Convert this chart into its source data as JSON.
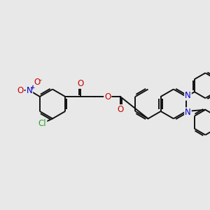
{
  "bg": "#e8e8e8",
  "bc": "#111111",
  "bw": 1.4,
  "atom_colors": {
    "C": "#111111",
    "N": "#0000cc",
    "O": "#cc0000",
    "Cl": "#2ca02c"
  },
  "fs": 8.5
}
